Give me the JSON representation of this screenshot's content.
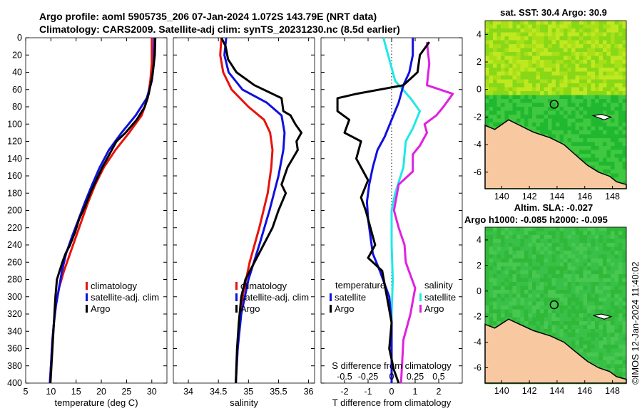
{
  "title_line1": "Argo profile: aoml 5905735_206 07-Jan-2024 1.072S 143.79E (NRT data)",
  "title_line2": "Climatology: CARS2009. Satellite-adj clim: synTS_20231230.nc (8.5d earlier)",
  "timestamp": "©IMOS 12-Jan-2024 11:40:02",
  "colors": {
    "climatology": "#e8120c",
    "satellite": "#1010e0",
    "argo": "#000000",
    "cyan": "#20e8e8",
    "magenta": "#e020e0",
    "land": "#f8c8a0",
    "sea_sst": "#98e010",
    "sea_sla": "#30c040"
  },
  "chart_data": [
    {
      "type": "line",
      "id": "temperature",
      "xlabel": "temperature (deg C)",
      "xlim": [
        5,
        33
      ],
      "ylim": [
        400,
        0
      ],
      "xticks": [
        "5",
        "10",
        "15",
        "20",
        "25",
        "30"
      ],
      "yticks": [
        "0",
        "20",
        "40",
        "60",
        "80",
        "100",
        "120",
        "140",
        "160",
        "180",
        "200",
        "220",
        "240",
        "260",
        "280",
        "300",
        "320",
        "340",
        "360",
        "380",
        "400"
      ],
      "legend": [
        "climatology",
        "satellite-adj. clim",
        "Argo"
      ],
      "series": [
        {
          "name": "climatology",
          "points": [
            [
              30.0,
              0
            ],
            [
              30.0,
              30
            ],
            [
              29.7,
              50
            ],
            [
              29.2,
              70
            ],
            [
              28.0,
              90
            ],
            [
              25.5,
              110
            ],
            [
              22.8,
              130
            ],
            [
              20.5,
              150
            ],
            [
              18.8,
              170
            ],
            [
              17.4,
              190
            ],
            [
              16.2,
              210
            ],
            [
              15.0,
              230
            ],
            [
              13.8,
              250
            ],
            [
              12.6,
              270
            ],
            [
              11.6,
              290
            ],
            [
              11.0,
              310
            ],
            [
              10.6,
              330
            ],
            [
              10.3,
              350
            ],
            [
              10.0,
              380
            ],
            [
              9.8,
              400
            ]
          ]
        },
        {
          "name": "satellite-adj. clim",
          "points": [
            [
              30.5,
              0
            ],
            [
              30.4,
              30
            ],
            [
              30.0,
              50
            ],
            [
              29.0,
              70
            ],
            [
              26.8,
              90
            ],
            [
              24.0,
              110
            ],
            [
              21.5,
              130
            ],
            [
              19.7,
              150
            ],
            [
              18.2,
              170
            ],
            [
              16.8,
              190
            ],
            [
              15.5,
              210
            ],
            [
              14.2,
              230
            ],
            [
              13.0,
              250
            ],
            [
              12.2,
              270
            ],
            [
              11.6,
              290
            ],
            [
              11.0,
              310
            ],
            [
              10.6,
              330
            ],
            [
              10.3,
              350
            ],
            [
              10.0,
              380
            ],
            [
              9.8,
              400
            ]
          ]
        },
        {
          "name": "Argo",
          "points": [
            [
              30.7,
              0
            ],
            [
              30.6,
              20
            ],
            [
              30.1,
              45
            ],
            [
              29.4,
              65
            ],
            [
              28.6,
              80
            ],
            [
              27.0,
              95
            ],
            [
              24.8,
              110
            ],
            [
              23.0,
              120
            ],
            [
              21.6,
              135
            ],
            [
              20.2,
              150
            ],
            [
              19.0,
              165
            ],
            [
              17.8,
              180
            ],
            [
              16.8,
              195
            ],
            [
              15.6,
              210
            ],
            [
              14.8,
              225
            ],
            [
              13.8,
              240
            ],
            [
              12.9,
              250
            ],
            [
              12.4,
              258
            ],
            [
              12.0,
              265
            ],
            [
              11.2,
              280
            ],
            [
              10.9,
              300
            ],
            [
              10.7,
              320
            ],
            [
              10.5,
              340
            ],
            [
              10.3,
              360
            ],
            [
              10.1,
              380
            ],
            [
              9.9,
              400
            ]
          ]
        }
      ]
    },
    {
      "type": "line",
      "id": "salinity",
      "xlabel": "salinity",
      "xlim": [
        33.75,
        36.1
      ],
      "ylim": [
        400,
        0
      ],
      "xticks": [
        "34",
        "34.5",
        "35",
        "35.5",
        "36"
      ],
      "legend": [
        "climatology",
        "satellite-adj. clim",
        "Argo"
      ],
      "series": [
        {
          "name": "climatology",
          "points": [
            [
              34.55,
              0
            ],
            [
              34.53,
              20
            ],
            [
              34.58,
              40
            ],
            [
              34.72,
              60
            ],
            [
              35.0,
              80
            ],
            [
              35.26,
              95
            ],
            [
              35.36,
              110
            ],
            [
              35.4,
              130
            ],
            [
              35.38,
              150
            ],
            [
              35.32,
              180
            ],
            [
              35.18,
              220
            ],
            [
              35.02,
              260
            ],
            [
              34.9,
              300
            ],
            [
              34.84,
              340
            ],
            [
              34.8,
              380
            ],
            [
              34.79,
              400
            ]
          ]
        },
        {
          "name": "satellite-adj. clim",
          "points": [
            [
              34.63,
              0
            ],
            [
              34.6,
              20
            ],
            [
              34.67,
              40
            ],
            [
              34.9,
              60
            ],
            [
              35.3,
              75
            ],
            [
              35.55,
              90
            ],
            [
              35.6,
              110
            ],
            [
              35.58,
              130
            ],
            [
              35.5,
              160
            ],
            [
              35.35,
              200
            ],
            [
              35.18,
              240
            ],
            [
              35.0,
              280
            ],
            [
              34.88,
              320
            ],
            [
              34.82,
              360
            ],
            [
              34.79,
              400
            ]
          ]
        },
        {
          "name": "Argo",
          "points": [
            [
              34.55,
              0
            ],
            [
              34.62,
              10
            ],
            [
              34.66,
              25
            ],
            [
              34.8,
              40
            ],
            [
              35.1,
              55
            ],
            [
              35.4,
              65
            ],
            [
              35.55,
              70
            ],
            [
              35.58,
              85
            ],
            [
              35.7,
              90
            ],
            [
              35.78,
              100
            ],
            [
              35.88,
              110
            ],
            [
              35.8,
              120
            ],
            [
              35.82,
              130
            ],
            [
              35.65,
              150
            ],
            [
              35.55,
              170
            ],
            [
              35.62,
              180
            ],
            [
              35.5,
              200
            ],
            [
              35.4,
              220
            ],
            [
              35.25,
              240
            ],
            [
              35.1,
              260
            ],
            [
              34.95,
              280
            ],
            [
              34.88,
              300
            ],
            [
              34.84,
              330
            ],
            [
              34.81,
              360
            ],
            [
              34.79,
              400
            ]
          ]
        }
      ]
    },
    {
      "type": "line",
      "id": "difference",
      "xlabel": "T difference from climatology",
      "xlabel_top": "S difference from climatology",
      "xlim": [
        -3,
        3
      ],
      "ylim": [
        400,
        0
      ],
      "xticks": [
        "-2",
        "-1",
        "0",
        "1",
        "2"
      ],
      "top_ticks": [
        "-0.5",
        "-0.25",
        "0",
        "0.25",
        "0.5"
      ],
      "legend_left": {
        "header": "temperature",
        "items": [
          "satellite",
          "Argo"
        ]
      },
      "legend_right": {
        "header": "salinity",
        "items": [
          "satellite",
          "Argo"
        ]
      },
      "series": [
        {
          "name": "T satellite",
          "points": [
            [
              0.9,
              0
            ],
            [
              0.9,
              20
            ],
            [
              0.75,
              40
            ],
            [
              0.5,
              55
            ],
            [
              0.3,
              75
            ],
            [
              0.0,
              95
            ],
            [
              -0.3,
              115
            ],
            [
              -0.6,
              130
            ],
            [
              -0.8,
              150
            ],
            [
              -0.95,
              170
            ],
            [
              -1.05,
              190
            ],
            [
              -1.0,
              210
            ],
            [
              -0.9,
              230
            ],
            [
              -0.8,
              250
            ],
            [
              -0.5,
              270
            ],
            [
              -0.1,
              300
            ],
            [
              0.0,
              330
            ],
            [
              0.0,
              360
            ],
            [
              0.0,
              400
            ]
          ]
        },
        {
          "name": "T Argo",
          "points": [
            [
              1.6,
              5
            ],
            [
              1.2,
              20
            ],
            [
              1.1,
              40
            ],
            [
              0.5,
              55
            ],
            [
              -1.5,
              65
            ],
            [
              -2.3,
              70
            ],
            [
              -2.3,
              85
            ],
            [
              -1.8,
              95
            ],
            [
              -2.0,
              110
            ],
            [
              -1.3,
              120
            ],
            [
              -1.5,
              140
            ],
            [
              -1.0,
              165
            ],
            [
              -1.3,
              185
            ],
            [
              -1.1,
              200
            ],
            [
              -0.9,
              220
            ],
            [
              -0.7,
              240
            ],
            [
              -1.0,
              255
            ],
            [
              -0.4,
              270
            ],
            [
              -0.2,
              300
            ],
            [
              0.0,
              330
            ],
            [
              -0.1,
              360
            ],
            [
              0.1,
              385
            ],
            [
              0.3,
              400
            ]
          ]
        },
        {
          "name": "S satellite",
          "points": [
            [
              -0.35,
              0
            ],
            [
              -0.05,
              30
            ],
            [
              0.15,
              50
            ],
            [
              0.8,
              70
            ],
            [
              1.2,
              85
            ],
            [
              0.9,
              105
            ],
            [
              0.6,
              120
            ],
            [
              0.5,
              150
            ],
            [
              0.15,
              180
            ],
            [
              0.0,
              200
            ],
            [
              0.0,
              240
            ],
            [
              0.05,
              280
            ],
            [
              0.0,
              320
            ],
            [
              0.0,
              360
            ],
            [
              0.0,
              400
            ]
          ]
        },
        {
          "name": "S Argo",
          "points": [
            [
              1.5,
              5
            ],
            [
              1.6,
              30
            ],
            [
              1.5,
              55
            ],
            [
              2.6,
              65
            ],
            [
              2.2,
              80
            ],
            [
              1.9,
              90
            ],
            [
              1.4,
              100
            ],
            [
              1.5,
              110
            ],
            [
              1.2,
              125
            ],
            [
              0.9,
              135
            ],
            [
              0.9,
              155
            ],
            [
              0.3,
              170
            ],
            [
              0.1,
              200
            ],
            [
              0.3,
              220
            ],
            [
              0.55,
              240
            ],
            [
              0.6,
              260
            ],
            [
              0.8,
              275
            ],
            [
              1.0,
              290
            ],
            [
              0.8,
              320
            ],
            [
              0.5,
              350
            ],
            [
              0.4,
              400
            ]
          ]
        }
      ]
    },
    {
      "type": "heatmap",
      "id": "sst-map",
      "title": "sat. SST: 30.4 Argo: 30.9",
      "xticks": [
        "140",
        "142",
        "144",
        "146",
        "148"
      ],
      "yticks": [
        "4",
        "2",
        "0",
        "-2",
        "-4",
        "-6"
      ],
      "marker": {
        "lon": 143.79,
        "lat": -1.072
      }
    },
    {
      "type": "heatmap",
      "id": "sla-map",
      "title1": "Altim. SLA: -0.027",
      "title2": "Argo h1000: -0.085 h2000: -0.095",
      "xticks": [
        "140",
        "142",
        "144",
        "146",
        "148"
      ],
      "yticks": [
        "4",
        "2",
        "0",
        "-2",
        "-4",
        "-6"
      ],
      "marker": {
        "lon": 143.79,
        "lat": -1.072
      }
    }
  ]
}
